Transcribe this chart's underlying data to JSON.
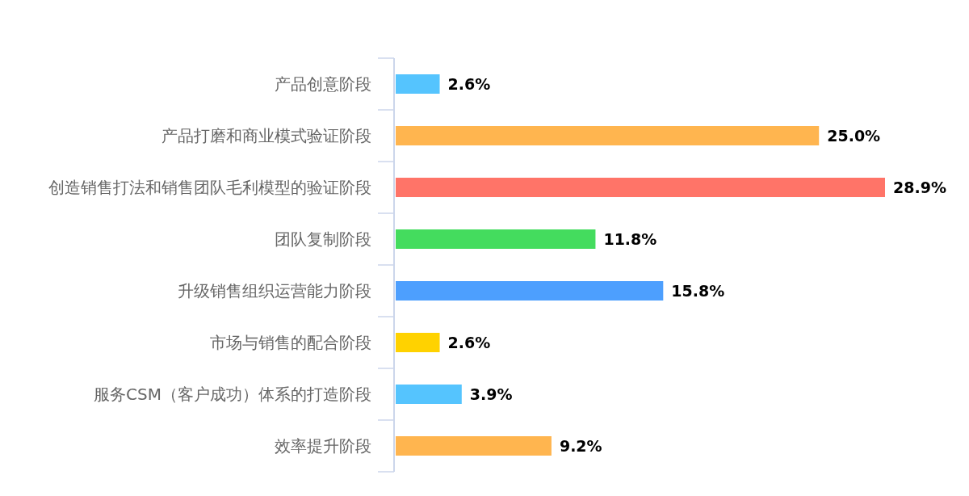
{
  "chart_data": {
    "type": "bar",
    "orientation": "horizontal",
    "categories": [
      "产品创意阶段",
      "产品打磨和商业模式验证阶段",
      "创造销售打法和销售团队毛利模型的验证阶段",
      "团队复制阶段",
      "升级销售组织运营能力阶段",
      "市场与销售的配合阶段",
      "服务CSM（客户成功）体系的打造阶段",
      "效率提升阶段"
    ],
    "values": [
      2.6,
      25.0,
      28.9,
      11.8,
      15.8,
      2.6,
      3.9,
      9.2
    ],
    "value_labels": [
      "2.6%",
      "25.0%",
      "28.9%",
      "11.8%",
      "15.8%",
      "2.6%",
      "3.9%",
      "9.2%"
    ],
    "colors": [
      "#55c4fe",
      "#ffb54f",
      "#ff7468",
      "#44dc5e",
      "#4d9ffe",
      "#ffd200",
      "#55c4fe",
      "#ffb54f"
    ]
  }
}
